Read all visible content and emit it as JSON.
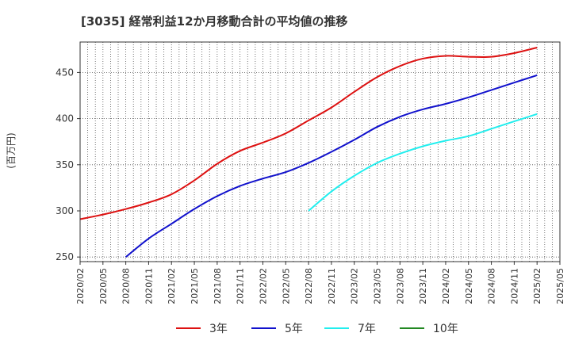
{
  "chart_data": {
    "type": "line",
    "title": "[3035]  経常利益12か月移動合計の平均値の推移",
    "ylabel": "(百万円)",
    "xlabel": "",
    "ylim": [
      245,
      483
    ],
    "yticks": [
      250,
      300,
      350,
      400,
      450
    ],
    "x_ticks": [
      "2020/02",
      "2020/05",
      "2020/08",
      "2020/11",
      "2021/02",
      "2021/05",
      "2021/08",
      "2021/11",
      "2022/02",
      "2022/05",
      "2022/08",
      "2022/11",
      "2023/02",
      "2023/05",
      "2023/08",
      "2023/11",
      "2024/02",
      "2024/05",
      "2024/08",
      "2024/11",
      "2025/02",
      "2025/05"
    ],
    "grid": true,
    "legend_position": "bottom",
    "series": [
      {
        "name": "3年",
        "color": "#dd1111",
        "x": [
          "2020/02",
          "2020/05",
          "2020/08",
          "2020/11",
          "2021/02",
          "2021/05",
          "2021/08",
          "2021/11",
          "2022/02",
          "2022/05",
          "2022/08",
          "2022/11",
          "2023/02",
          "2023/05",
          "2023/08",
          "2023/11",
          "2024/02",
          "2024/05",
          "2024/08",
          "2024/11",
          "2025/02"
        ],
        "values": [
          291,
          296,
          302,
          309,
          318,
          333,
          351,
          365,
          374,
          384,
          398,
          412,
          429,
          445,
          457,
          465,
          468,
          467,
          467,
          471,
          477
        ]
      },
      {
        "name": "5年",
        "color": "#1111cc",
        "x": [
          "2020/08",
          "2020/11",
          "2021/02",
          "2021/05",
          "2021/08",
          "2021/11",
          "2022/02",
          "2022/05",
          "2022/08",
          "2022/11",
          "2023/02",
          "2023/05",
          "2023/08",
          "2023/11",
          "2024/02",
          "2024/05",
          "2024/08",
          "2024/11",
          "2025/02"
        ],
        "values": [
          250,
          270,
          286,
          302,
          316,
          327,
          335,
          342,
          352,
          364,
          377,
          391,
          402,
          410,
          416,
          423,
          431,
          439,
          447
        ]
      },
      {
        "name": "7年",
        "color": "#22eeee",
        "x": [
          "2022/08",
          "2022/11",
          "2023/02",
          "2023/05",
          "2023/08",
          "2023/11",
          "2024/02",
          "2024/05",
          "2024/08",
          "2024/11",
          "2025/02"
        ],
        "values": [
          300,
          321,
          338,
          352,
          362,
          370,
          376,
          381,
          389,
          397,
          405
        ]
      },
      {
        "name": "10年",
        "color": "#228822",
        "x": [],
        "values": []
      }
    ]
  }
}
